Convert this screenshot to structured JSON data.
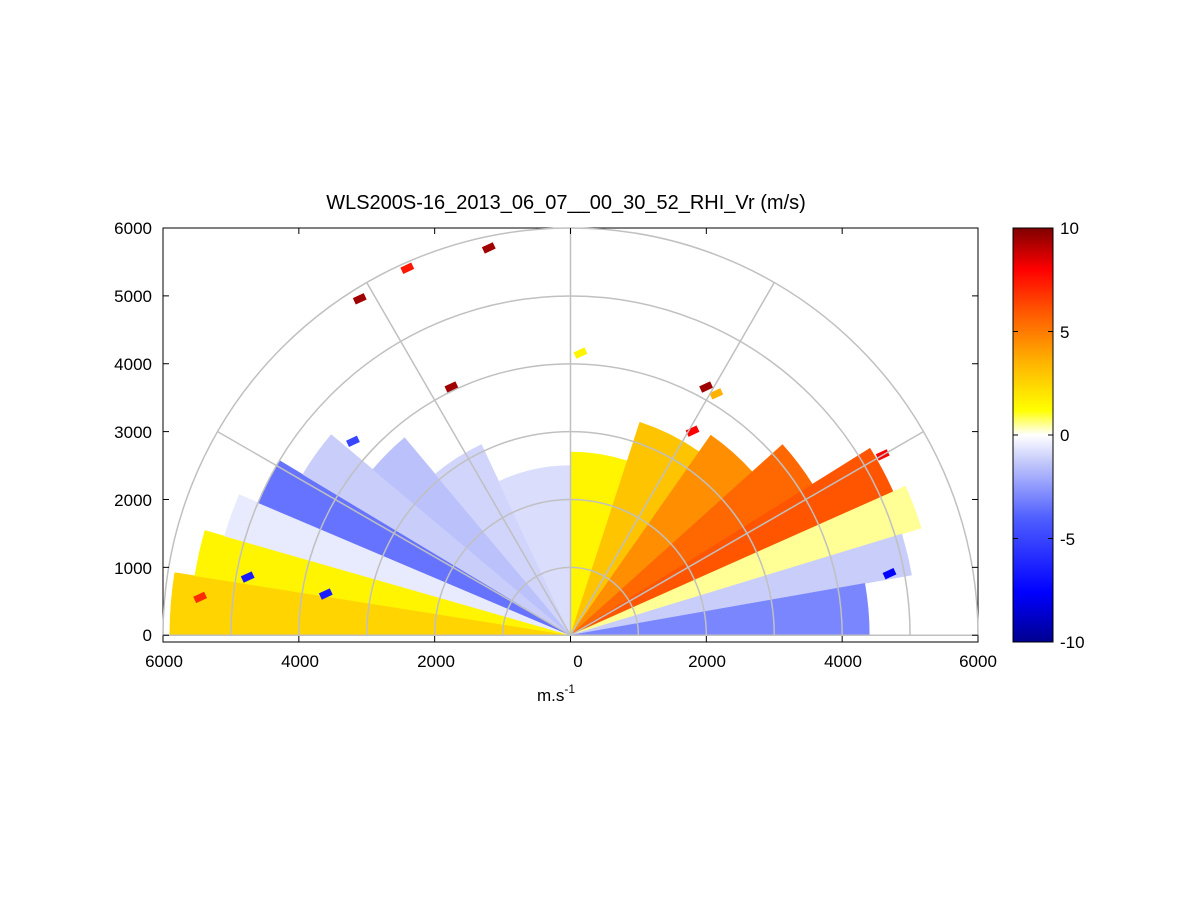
{
  "chart_data": {
    "type": "heatmap",
    "subtype": "polar RHI (range-height indicator) scan",
    "title": "WLS200S-16_2013_06_07__00_30_52_RHI_Vr (m/s)",
    "xlabel_base": "m.s",
    "xlabel_sup": "-1",
    "ylabel": "",
    "x_ticks": [
      "6000",
      "4000",
      "2000",
      "0",
      "2000",
      "4000",
      "6000"
    ],
    "y_ticks": [
      "0",
      "1000",
      "2000",
      "3000",
      "4000",
      "5000",
      "6000"
    ],
    "xlim": [
      -6000,
      6000
    ],
    "ylim": [
      -100,
      6000
    ],
    "polar_grid": {
      "range_rings": [
        1000,
        2000,
        3000,
        4000,
        5000,
        6000
      ],
      "spokes_deg": [
        0,
        30,
        60,
        90,
        120,
        150,
        180
      ]
    },
    "colorbar": {
      "range": [
        -10,
        10
      ],
      "tick_labels": [
        "10",
        "5",
        "0",
        "-5",
        "-10"
      ],
      "colors": [
        "#00008f",
        "#0000ff",
        "#4f5fff",
        "#c8cdfa",
        "#ffffff",
        "#ffff00",
        "#ffb000",
        "#ff5500",
        "#ff0000",
        "#7f0000"
      ]
    },
    "sectors": [
      {
        "az_from": 171,
        "az_to": 180,
        "r_from": 0,
        "r_to": 5900,
        "vr": 2.5
      },
      {
        "az_from": 164,
        "az_to": 171,
        "r_from": 0,
        "r_to": 5600,
        "vr": 1.5
      },
      {
        "az_from": 157,
        "az_to": 164,
        "r_from": 0,
        "r_to": 5300,
        "vr": -0.5
      },
      {
        "az_from": 149,
        "az_to": 157,
        "r_from": 0,
        "r_to": 5000,
        "vr": -3.5
      },
      {
        "az_from": 140,
        "az_to": 149,
        "r_from": 0,
        "r_to": 4600,
        "vr": -1.2
      },
      {
        "az_from": 130,
        "az_to": 140,
        "r_from": 0,
        "r_to": 3800,
        "vr": -1.5
      },
      {
        "az_from": 115,
        "az_to": 130,
        "r_from": 0,
        "r_to": 3100,
        "vr": -1.0
      },
      {
        "az_from": 90,
        "az_to": 115,
        "r_from": 0,
        "r_to": 2500,
        "vr": -0.8
      },
      {
        "az_from": 72,
        "az_to": 90,
        "r_from": 0,
        "r_to": 2700,
        "vr": 1.5
      },
      {
        "az_from": 55,
        "az_to": 72,
        "r_from": 0,
        "r_to": 3300,
        "vr": 3.0
      },
      {
        "az_from": 42,
        "az_to": 55,
        "r_from": 0,
        "r_to": 3600,
        "vr": 4.5
      },
      {
        "az_from": 32,
        "az_to": 42,
        "r_from": 0,
        "r_to": 4200,
        "vr": 5.5
      },
      {
        "az_from": 24,
        "az_to": 32,
        "r_from": 0,
        "r_to": 5200,
        "vr": 6.0
      },
      {
        "az_from": 17,
        "az_to": 24,
        "r_from": 0,
        "r_to": 5400,
        "vr": 0.5
      },
      {
        "az_from": 10,
        "az_to": 17,
        "r_from": 0,
        "r_to": 5100,
        "vr": -1.2
      },
      {
        "az_from": 0,
        "az_to": 10,
        "r_from": 0,
        "r_to": 4400,
        "vr": -3.0
      }
    ],
    "isolated_points": [
      {
        "x": -3100,
        "y": 4950,
        "vr": 9.5
      },
      {
        "x": -2400,
        "y": 5400,
        "vr": 7.5
      },
      {
        "x": -1200,
        "y": 5700,
        "vr": 9.5
      },
      {
        "x": -1750,
        "y": 3650,
        "vr": 9.5
      },
      {
        "x": 2000,
        "y": 3650,
        "vr": 9.5
      },
      {
        "x": 2150,
        "y": 3550,
        "vr": 3.5
      },
      {
        "x": 150,
        "y": 4150,
        "vr": 1.5
      },
      {
        "x": -3200,
        "y": 2850,
        "vr": -5.0
      },
      {
        "x": -4750,
        "y": 850,
        "vr": -6.5
      },
      {
        "x": -3600,
        "y": 600,
        "vr": -6.5
      },
      {
        "x": -5450,
        "y": 550,
        "vr": 7.0
      },
      {
        "x": 4700,
        "y": 900,
        "vr": -7.5
      },
      {
        "x": 4600,
        "y": 2650,
        "vr": 8.0
      },
      {
        "x": 1800,
        "y": 3000,
        "vr": 8.0
      }
    ]
  }
}
